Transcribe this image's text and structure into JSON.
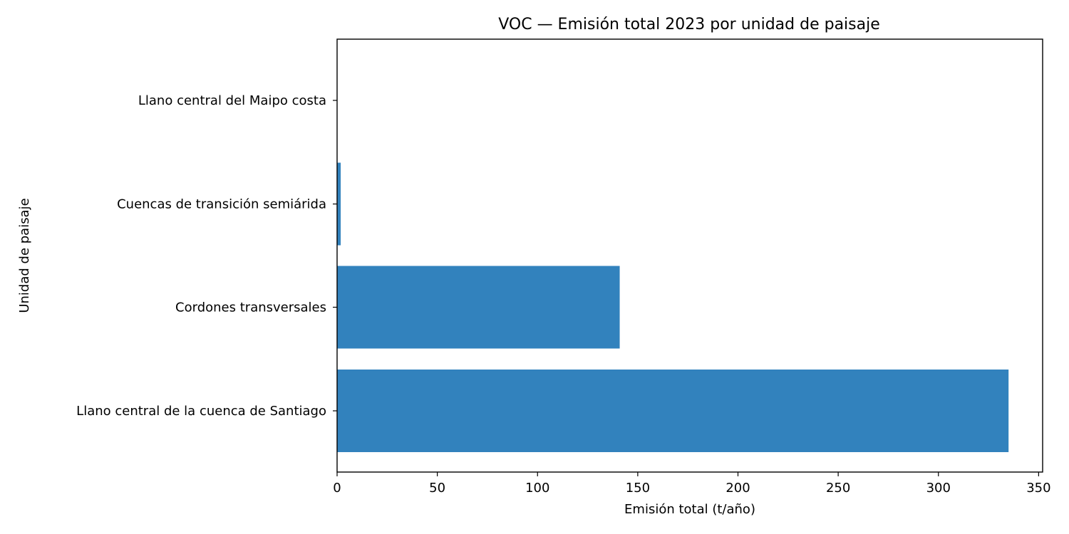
{
  "chart_data": {
    "type": "bar",
    "orientation": "horizontal",
    "title": "VOC — Emisión total 2023 por unidad de paisaje",
    "xlabel": "Emisión total (t/año)",
    "ylabel": "Unidad de paisaje",
    "categories": [
      "Llano central del Maipo costa",
      "Cuencas de transición semiárida",
      "Cordones transversales",
      "Llano central de la cuenca de Santiago"
    ],
    "values": [
      0.1,
      1.8,
      141.0,
      335.0
    ],
    "xlim": [
      0,
      352
    ],
    "xticks": [
      0,
      50,
      100,
      150,
      200,
      250,
      300,
      350
    ],
    "grid": false,
    "legend": "none",
    "bar_color": "#3282bd"
  }
}
